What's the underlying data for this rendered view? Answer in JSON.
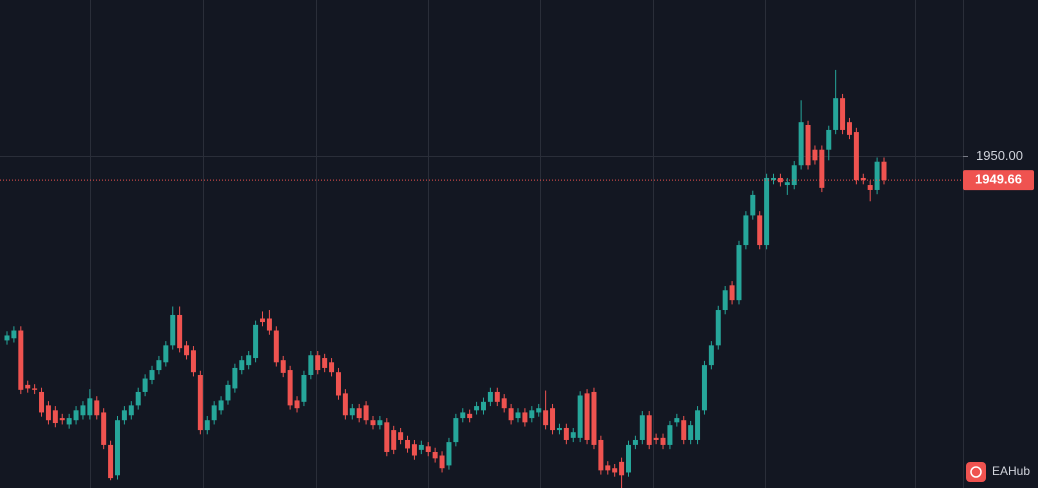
{
  "chart_data": {
    "type": "candlestick",
    "up_color": "#26a69a",
    "down_color": "#ef5350",
    "grid": true,
    "ylim": [
      1945.3,
      1952.21
    ],
    "yticks": [
      {
        "value": 1950,
        "label": "1950.00"
      }
    ],
    "last_price": 1949.66,
    "watermark": "EAHub",
    "open": [
      1947.39,
      1947.42,
      1947.53,
      1946.76,
      1946.71,
      1946.66,
      1946.47,
      1946.4,
      1946.29,
      1946.2,
      1946.26,
      1946.33,
      1946.33,
      1946.54,
      1946.37,
      1945.91,
      1945.48,
      1946.26,
      1946.33,
      1946.47,
      1946.66,
      1946.83,
      1946.97,
      1947.08,
      1947.32,
      1947.75,
      1947.32,
      1947.25,
      1946.9,
      1946.12,
      1946.26,
      1946.4,
      1946.54,
      1946.71,
      1946.97,
      1947.04,
      1947.14,
      1947.7,
      1947.7,
      1947.53,
      1947.11,
      1946.97,
      1946.54,
      1946.52,
      1946.9,
      1947.18,
      1947.14,
      1947.08,
      1946.94,
      1946.64,
      1946.33,
      1946.43,
      1946.47,
      1946.26,
      1946.19,
      1946.23,
      1946.12,
      1946.09,
      1945.98,
      1945.92,
      1945.84,
      1945.89,
      1945.81,
      1945.76,
      1945.62,
      1945.95,
      1946.29,
      1946.35,
      1946.4,
      1946.4,
      1946.52,
      1946.66,
      1946.57,
      1946.43,
      1946.29,
      1946.37,
      1946.29,
      1946.37,
      1946.4,
      1946.43,
      1946.12,
      1946.15,
      1946.01,
      1946.01,
      1946.64,
      1946.66,
      1945.98,
      1945.62,
      1945.58,
      1945.67,
      1945.52,
      1945.91,
      1945.98,
      1946.33,
      1946.01,
      1946.01,
      1945.91,
      1946.23,
      1946.26,
      1945.98,
      1945.98,
      1946.4,
      1947.04,
      1947.32,
      1947.82,
      1948.17,
      1947.96,
      1948.74,
      1949.16,
      1949.16,
      1948.74,
      1949.66,
      1949.69,
      1949.59,
      1949.59,
      1949.87,
      1950.44,
      1950.09,
      1950.09,
      1950.09,
      1950.37,
      1950.82,
      1950.48,
      1950.34,
      1949.69,
      1949.59,
      1949.52,
      1949.92
    ],
    "high": [
      1947.52,
      1947.59,
      1947.59,
      1946.82,
      1946.77,
      1946.72,
      1946.53,
      1946.46,
      1946.35,
      1946.35,
      1946.46,
      1946.53,
      1946.7,
      1946.6,
      1946.43,
      1945.97,
      1946.32,
      1946.46,
      1946.53,
      1946.72,
      1946.91,
      1947.03,
      1947.17,
      1947.38,
      1947.87,
      1947.87,
      1947.38,
      1947.31,
      1946.96,
      1946.32,
      1946.53,
      1946.6,
      1946.82,
      1947.06,
      1947.17,
      1947.24,
      1947.67,
      1947.8,
      1947.82,
      1947.59,
      1947.17,
      1947.03,
      1946.6,
      1946.96,
      1947.24,
      1947.24,
      1947.2,
      1947.14,
      1947.0,
      1946.7,
      1946.49,
      1946.49,
      1946.53,
      1946.32,
      1946.32,
      1946.29,
      1946.18,
      1946.15,
      1946.04,
      1945.98,
      1945.97,
      1945.95,
      1945.87,
      1945.82,
      1946.01,
      1946.35,
      1946.43,
      1946.41,
      1946.52,
      1946.58,
      1946.72,
      1946.72,
      1946.63,
      1946.49,
      1946.43,
      1946.43,
      1946.46,
      1946.49,
      1946.68,
      1946.49,
      1946.21,
      1946.21,
      1946.15,
      1946.67,
      1946.7,
      1946.72,
      1946.04,
      1945.68,
      1945.64,
      1945.73,
      1945.97,
      1946.04,
      1946.39,
      1946.39,
      1946.07,
      1946.07,
      1946.25,
      1946.35,
      1946.32,
      1946.25,
      1946.46,
      1947.1,
      1947.38,
      1947.88,
      1948.16,
      1948.23,
      1948.8,
      1949.22,
      1949.51,
      1949.22,
      1949.75,
      1949.75,
      1949.75,
      1949.69,
      1949.93,
      1950.79,
      1950.5,
      1950.15,
      1950.15,
      1950.43,
      1951.22,
      1950.88,
      1950.54,
      1950.4,
      1949.75,
      1949.65,
      1949.98,
      1949.98
    ],
    "low": [
      1947.33,
      1947.36,
      1946.63,
      1946.65,
      1946.63,
      1946.31,
      1946.2,
      1946.16,
      1946.2,
      1946.14,
      1946.2,
      1946.27,
      1946.27,
      1946.27,
      1945.85,
      1945.41,
      1945.42,
      1946.2,
      1946.27,
      1946.41,
      1946.6,
      1946.77,
      1946.91,
      1947.02,
      1947.26,
      1947.22,
      1947.12,
      1946.88,
      1946.06,
      1946.06,
      1946.2,
      1946.34,
      1946.48,
      1946.65,
      1946.91,
      1946.98,
      1947.08,
      1947.59,
      1947.47,
      1947.02,
      1946.87,
      1946.41,
      1946.37,
      1946.46,
      1946.84,
      1946.91,
      1946.94,
      1946.88,
      1946.55,
      1946.27,
      1946.27,
      1946.23,
      1946.2,
      1946.13,
      1946.13,
      1945.75,
      1945.78,
      1945.92,
      1945.8,
      1945.7,
      1945.78,
      1945.75,
      1945.66,
      1945.52,
      1945.56,
      1945.89,
      1946.23,
      1946.23,
      1946.34,
      1946.34,
      1946.46,
      1946.46,
      1946.37,
      1946.2,
      1946.23,
      1946.17,
      1946.23,
      1946.31,
      1946.13,
      1946.06,
      1946.06,
      1945.92,
      1945.95,
      1945.95,
      1945.92,
      1945.85,
      1945.49,
      1945.49,
      1945.46,
      1945.3,
      1945.46,
      1945.85,
      1945.92,
      1945.85,
      1945.92,
      1945.85,
      1945.85,
      1946.17,
      1945.92,
      1945.92,
      1945.92,
      1946.34,
      1946.98,
      1947.26,
      1947.76,
      1947.9,
      1947.9,
      1948.68,
      1949.1,
      1948.68,
      1948.68,
      1949.6,
      1949.57,
      1949.45,
      1949.53,
      1949.81,
      1949.81,
      1949.88,
      1949.49,
      1949.94,
      1950.31,
      1950.31,
      1950.24,
      1949.6,
      1949.6,
      1949.36,
      1949.46,
      1949.6
    ],
    "close": [
      1947.46,
      1947.53,
      1946.69,
      1946.71,
      1946.69,
      1946.37,
      1946.26,
      1946.22,
      1946.26,
      1946.29,
      1946.4,
      1946.47,
      1946.57,
      1946.33,
      1945.91,
      1945.44,
      1946.26,
      1946.4,
      1946.47,
      1946.66,
      1946.85,
      1946.97,
      1947.11,
      1947.32,
      1947.75,
      1947.28,
      1947.18,
      1946.94,
      1946.12,
      1946.26,
      1946.47,
      1946.54,
      1946.76,
      1947.0,
      1947.11,
      1947.18,
      1947.61,
      1947.65,
      1947.53,
      1947.08,
      1946.93,
      1946.47,
      1946.43,
      1946.9,
      1947.18,
      1946.97,
      1947.0,
      1946.94,
      1946.61,
      1946.33,
      1946.43,
      1946.29,
      1946.26,
      1946.19,
      1946.26,
      1945.81,
      1945.84,
      1945.98,
      1945.86,
      1945.76,
      1945.91,
      1945.81,
      1945.72,
      1945.58,
      1945.95,
      1946.29,
      1946.37,
      1946.29,
      1946.46,
      1946.52,
      1946.66,
      1946.52,
      1946.43,
      1946.26,
      1946.37,
      1946.23,
      1946.4,
      1946.43,
      1946.19,
      1946.12,
      1946.15,
      1945.98,
      1946.09,
      1946.61,
      1945.98,
      1945.91,
      1945.55,
      1945.55,
      1945.52,
      1945.48,
      1945.91,
      1945.98,
      1946.33,
      1945.91,
      1945.98,
      1945.91,
      1946.19,
      1946.29,
      1945.98,
      1946.19,
      1946.4,
      1947.04,
      1947.32,
      1947.82,
      1948.1,
      1947.96,
      1948.74,
      1949.16,
      1949.45,
      1948.74,
      1949.69,
      1949.69,
      1949.63,
      1949.63,
      1949.87,
      1950.48,
      1949.87,
      1949.94,
      1949.55,
      1950.37,
      1950.82,
      1950.37,
      1950.3,
      1949.66,
      1949.66,
      1949.52,
      1949.92,
      1949.66
    ]
  }
}
